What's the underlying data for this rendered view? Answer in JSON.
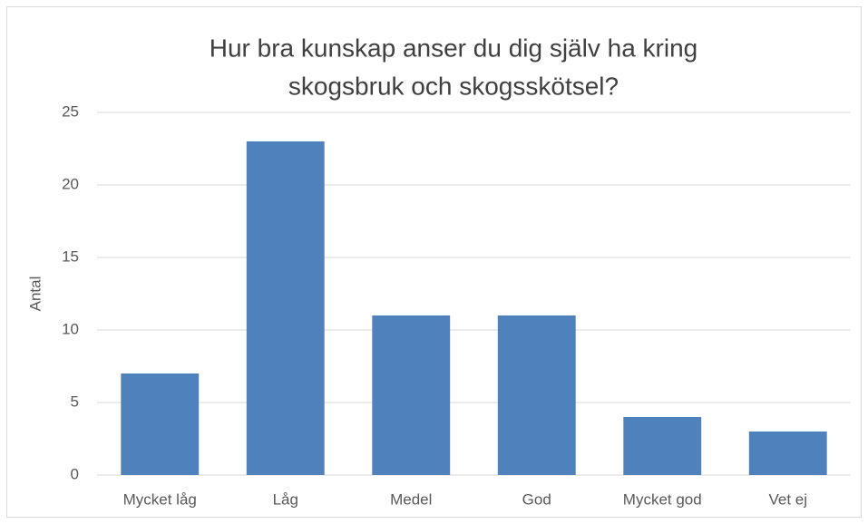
{
  "chart_data": {
    "type": "bar",
    "title": [
      "Hur bra kunskap anser du dig själv ha kring",
      "skogsbruk och skogsskötsel?"
    ],
    "y_label": "Antal",
    "categories": [
      "Mycket låg",
      "Låg",
      "Medel",
      "God",
      "Mycket god",
      "Vet ej"
    ],
    "values": [
      7,
      23,
      11,
      11,
      4,
      3
    ],
    "color": "#4f81bd",
    "ylim": [
      0,
      25
    ],
    "yticks": [
      0,
      5,
      10,
      15,
      20,
      25
    ],
    "grid": true
  }
}
